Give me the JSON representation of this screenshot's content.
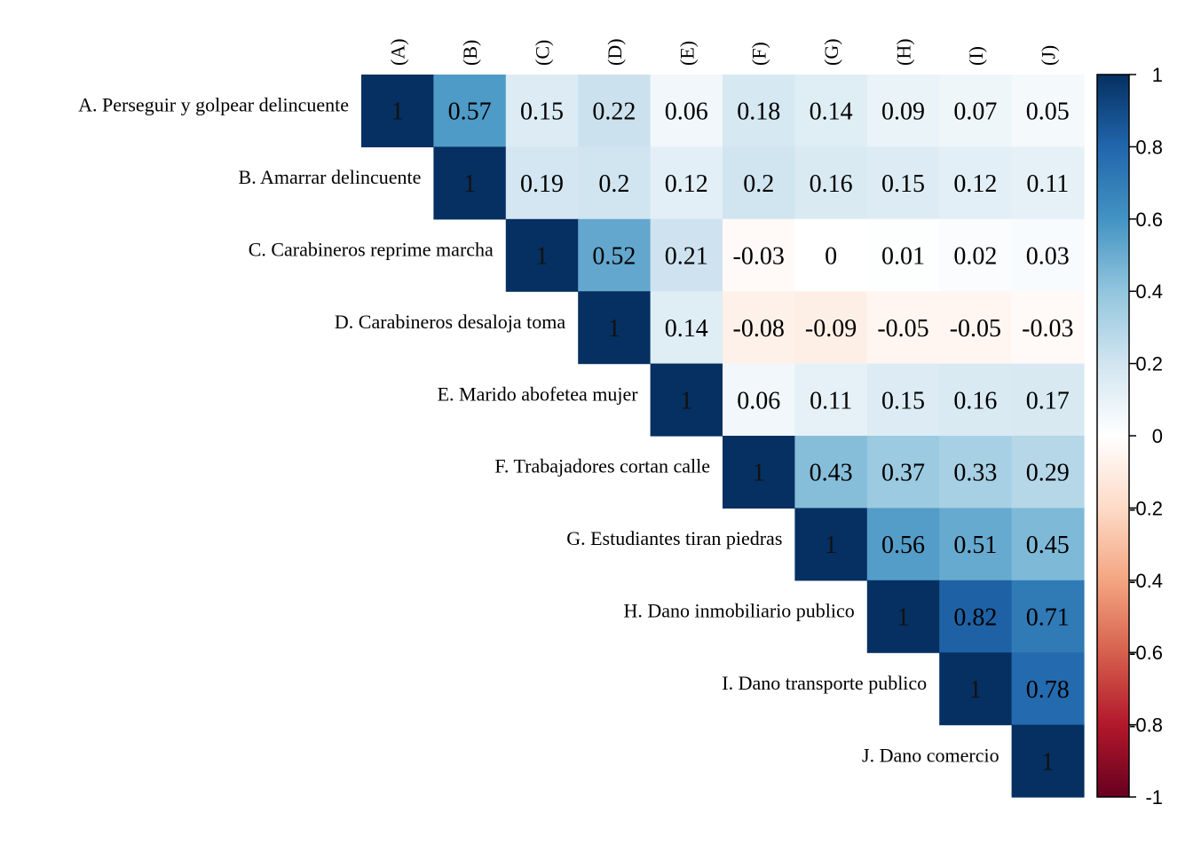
{
  "chart_data": {
    "type": "heatmap",
    "subtype": "correlation-upper-triangle",
    "column_labels": [
      "(A)",
      "(B)",
      "(C)",
      "(D)",
      "(E)",
      "(F)",
      "(G)",
      "(H)",
      "(I)",
      "(J)"
    ],
    "row_labels": [
      "A. Perseguir y golpear delincuente",
      "B. Amarrar delincuente",
      "C. Carabineros reprime marcha",
      "D. Carabineros desaloja toma",
      "E. Marido abofetea mujer",
      "F. Trabajadores cortan calle",
      "G. Estudiantes tiran piedras",
      "H. Dano inmobiliario publico",
      "I. Dano transporte publico",
      "J. Dano comercio"
    ],
    "matrix": [
      [
        1,
        0.57,
        0.15,
        0.22,
        0.06,
        0.18,
        0.14,
        0.09,
        0.07,
        0.05
      ],
      [
        null,
        1,
        0.19,
        0.2,
        0.12,
        0.2,
        0.16,
        0.15,
        0.12,
        0.11
      ],
      [
        null,
        null,
        1,
        0.52,
        0.21,
        -0.03,
        0,
        0.01,
        0.02,
        0.03
      ],
      [
        null,
        null,
        null,
        1,
        0.14,
        -0.08,
        -0.09,
        -0.05,
        -0.05,
        -0.03
      ],
      [
        null,
        null,
        null,
        null,
        1,
        0.06,
        0.11,
        0.15,
        0.16,
        0.17
      ],
      [
        null,
        null,
        null,
        null,
        null,
        1,
        0.43,
        0.37,
        0.33,
        0.29
      ],
      [
        null,
        null,
        null,
        null,
        null,
        null,
        1,
        0.56,
        0.51,
        0.45
      ],
      [
        null,
        null,
        null,
        null,
        null,
        null,
        null,
        1,
        0.82,
        0.71
      ],
      [
        null,
        null,
        null,
        null,
        null,
        null,
        null,
        null,
        1,
        0.78
      ],
      [
        null,
        null,
        null,
        null,
        null,
        null,
        null,
        null,
        null,
        1
      ]
    ],
    "colorbar": {
      "range": [
        -1,
        1
      ],
      "ticks": [
        "1",
        "0.8",
        "0.6",
        "0.4",
        "0.2",
        "0",
        "-0.2",
        "-0.4",
        "-0.6",
        "-0.8",
        "-1"
      ],
      "tick_values": [
        1,
        0.8,
        0.6,
        0.4,
        0.2,
        0,
        -0.2,
        -0.4,
        -0.6,
        -0.8,
        -1
      ],
      "palette": [
        "#67001F",
        "#B2182B",
        "#D6604D",
        "#F4A582",
        "#FDDBC7",
        "#FFFFFF",
        "#D1E5F0",
        "#92C5DE",
        "#4393C3",
        "#2166AC",
        "#053061"
      ]
    },
    "legend_position": "right",
    "grid": false
  }
}
